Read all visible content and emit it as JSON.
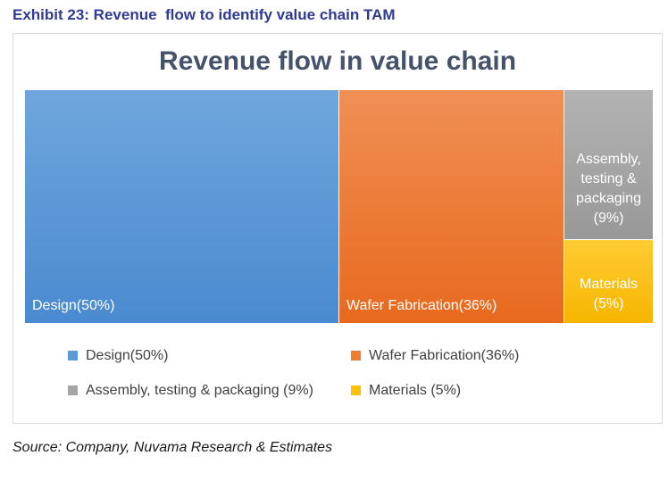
{
  "exhibit_title": "Exhibit 23: Revenue  flow to identify value chain TAM",
  "source": "Source: Company, Nuvama Research & Estimates",
  "chart_data": {
    "type": "treemap",
    "title": "Revenue flow in value chain",
    "unit": "%",
    "series": [
      {
        "name": "Design",
        "value": 50,
        "label": "Design(50%)",
        "legend": "Design(50%)",
        "color": "#5b9bd5"
      },
      {
        "name": "Wafer Fabrication",
        "value": 36,
        "label": "Wafer Fabrication(36%)",
        "legend": "Wafer Fabrication(36%)",
        "color": "#ed7d31"
      },
      {
        "name": "Assembly, testing & packaging",
        "value": 9,
        "label_lines": [
          "Assembly,",
          "testing &",
          "packaging",
          "(9%)"
        ],
        "legend": "Assembly, testing & packaging (9%)",
        "color": "#a5a5a5"
      },
      {
        "name": "Materials",
        "value": 5,
        "label_lines": [
          "Materials",
          "(5%)"
        ],
        "legend": "Materials (5%)",
        "color": "#ffc000"
      }
    ],
    "legend_position": "bottom"
  }
}
